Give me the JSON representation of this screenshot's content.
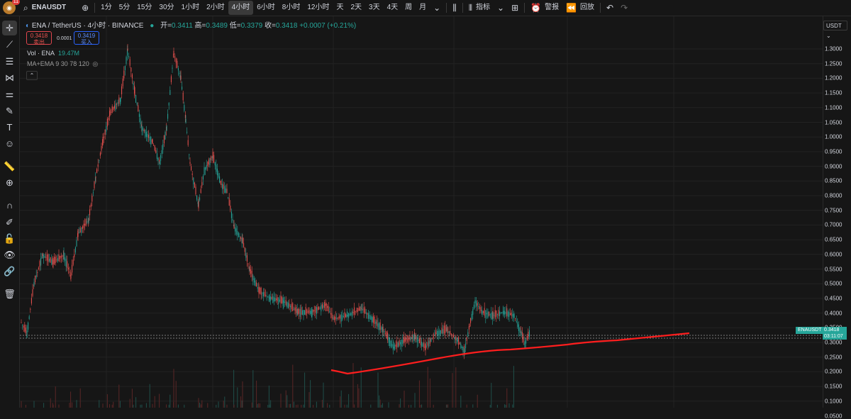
{
  "header": {
    "avatar_badge": "11",
    "symbol": "ENAUSDT",
    "intervals": [
      "1分",
      "5分",
      "15分",
      "30分",
      "1小时",
      "2小时",
      "4小时",
      "6小时",
      "8小时",
      "12小时",
      "天",
      "2天",
      "3天",
      "4天",
      "周",
      "月"
    ],
    "active_interval": "4小时",
    "indicators_label": "指标",
    "alert_label": "警报",
    "replay_label": "回放"
  },
  "legend": {
    "title": "ENA / TetherUS · 4小时 · BINANCE",
    "open_label": "开=",
    "open": "0.3411",
    "high_label": "高=",
    "high": "0.3489",
    "low_label": "低=",
    "low": "0.3379",
    "close_label": "收=",
    "close": "0.3418",
    "change": "+0.0007 (+0.21%)"
  },
  "trade": {
    "sell_price": "0.3418",
    "sell_label": "卖出",
    "spread": "0.0001",
    "buy_price": "0.3419",
    "buy_label": "买入"
  },
  "volume": {
    "label": "Vol · ENA",
    "value": "19.47M"
  },
  "ma": {
    "label": "MA+EMA 9 30 78 120"
  },
  "axis": {
    "currency": "USDT",
    "ticks": [
      "1.3000",
      "1.2500",
      "1.2000",
      "1.1500",
      "1.1000",
      "1.0500",
      "1.0000",
      "0.9500",
      "0.9000",
      "0.8500",
      "0.8000",
      "0.7500",
      "0.7000",
      "0.6500",
      "0.6000",
      "0.5500",
      "0.5000",
      "0.4500",
      "0.4000",
      "0.3500",
      "0.3000",
      "0.2500",
      "0.2000",
      "0.1500",
      "0.1000",
      "0.0500"
    ],
    "last_symbol": "ENAUSDT",
    "last_price": "0.3418",
    "countdown": "03:11:07"
  },
  "colors": {
    "up": "#26a69a",
    "down": "#ef5350",
    "trend": "#ff1e1e",
    "bg": "#161616"
  }
}
